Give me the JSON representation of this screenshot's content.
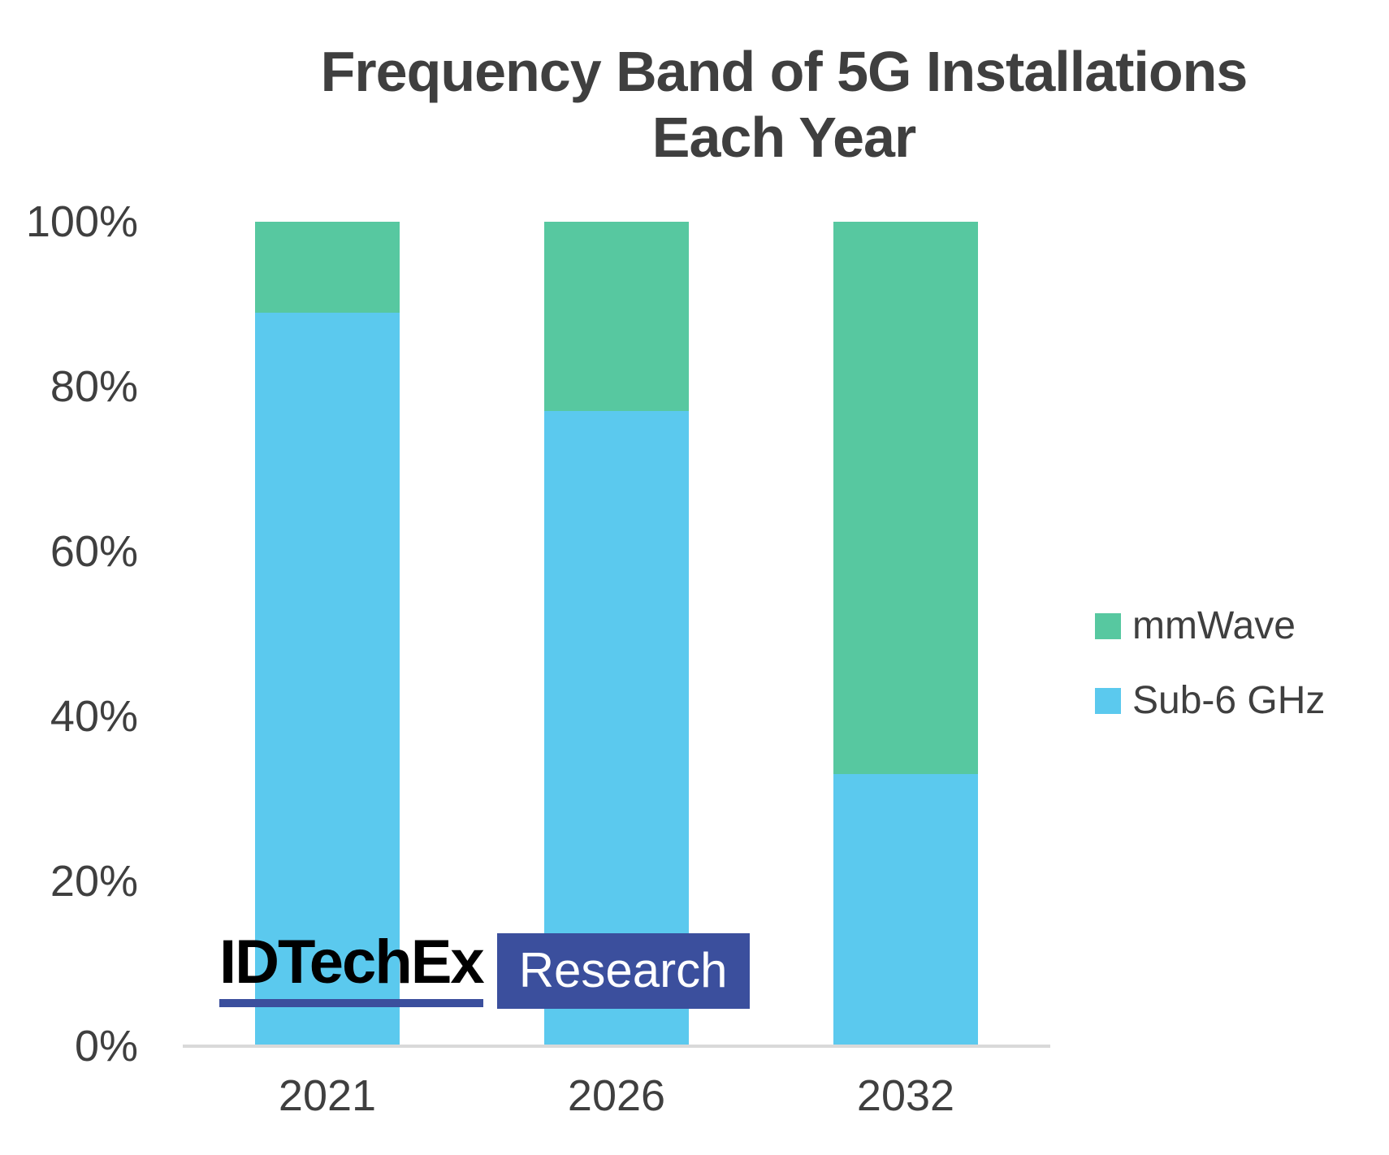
{
  "title": {
    "line1": "Frequency Band of 5G Installations",
    "line2": "Each Year"
  },
  "chart_data": {
    "type": "bar",
    "subtype": "100pct-stacked-column",
    "title": "Frequency Band of 5G Installations Each Year",
    "categories": [
      "2021",
      "2026",
      "2032"
    ],
    "series": [
      {
        "name": "Sub-6 GHz",
        "color": "#5BC9EE",
        "values": [
          89,
          77,
          33
        ]
      },
      {
        "name": "mmWave",
        "color": "#57C8A0",
        "values": [
          11,
          23,
          67
        ]
      }
    ],
    "xlabel": "",
    "ylabel": "",
    "ylim": [
      0,
      100
    ],
    "yticks": [
      0,
      20,
      40,
      60,
      80,
      100
    ],
    "ytick_labels": [
      "0%",
      "20%",
      "40%",
      "60%",
      "80%",
      "100%"
    ],
    "grid": false,
    "legend_position": "right",
    "legend_order": [
      "mmWave",
      "Sub-6 GHz"
    ]
  },
  "legend": {
    "items": [
      {
        "label": "mmWave",
        "color": "#57C8A0"
      },
      {
        "label": "Sub-6 GHz",
        "color": "#5BC9EE"
      }
    ]
  },
  "logo": {
    "brand": "IDTechEx",
    "suffix": "Research",
    "accent_color": "#3B4F9D",
    "brand_text_color": "#000000",
    "suffix_text_color": "#FFFFFF"
  },
  "colors": {
    "text": "#3F3F3F",
    "axis_line": "#D9D9D9",
    "background": "#FFFFFF"
  }
}
